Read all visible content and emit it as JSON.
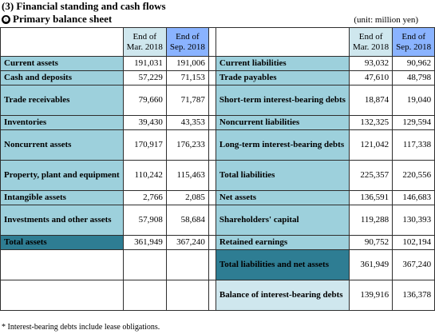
{
  "title": "(3) Financial standing and cash flows",
  "subtitle_badge": "❶",
  "subtitle": "Primary balance sheet",
  "unit": "(unit: million yen)",
  "columns": {
    "mar2018_line1": "End of",
    "mar2018_line2": "Mar. 2018",
    "sep2018_line1": "End of",
    "sep2018_line2": "Sep. 2018"
  },
  "colors": {
    "label_fill": "#9dd0dc",
    "header_mar_fill": "#cfe7ee",
    "header_sep_fill": "#8ab3ff",
    "total_fill": "#2e7d93"
  },
  "assets": [
    {
      "label": "Current assets",
      "mar": "191,031",
      "sep": "191,006",
      "indent": false
    },
    {
      "label": "Cash and deposits",
      "mar": "57,229",
      "sep": "71,153",
      "indent": true
    },
    {
      "label": "Trade receivables",
      "mar": "79,660",
      "sep": "71,787",
      "indent": true
    },
    {
      "label": "Inventories",
      "mar": "39,430",
      "sep": "43,353",
      "indent": true
    },
    {
      "label": "Noncurrent assets",
      "mar": "170,917",
      "sep": "176,233",
      "indent": false
    },
    {
      "label": "Property, plant and equipment",
      "mar": "110,242",
      "sep": "115,463",
      "indent": true
    },
    {
      "label": "Intangible assets",
      "mar": "2,766",
      "sep": "2,085",
      "indent": true
    },
    {
      "label": "Investments and other assets",
      "mar": "57,908",
      "sep": "58,684",
      "indent": true
    },
    {
      "label": "Total assets",
      "mar": "361,949",
      "sep": "367,240",
      "indent": false
    }
  ],
  "liabilities": [
    {
      "label": "Current liabilities",
      "mar": "93,032",
      "sep": "90,962",
      "indent": false
    },
    {
      "label": "Trade payables",
      "mar": "47,610",
      "sep": "48,798",
      "indent": true
    },
    {
      "label": "Short-term interest-bearing debts",
      "mar": "18,874",
      "sep": "19,040",
      "indent": true
    },
    {
      "label": "Noncurrent liabilities",
      "mar": "132,325",
      "sep": "129,594",
      "indent": false
    },
    {
      "label": "Long-term interest-bearing debts",
      "mar": "121,042",
      "sep": "117,338",
      "indent": true
    },
    {
      "label": "Total liabilities",
      "mar": "225,357",
      "sep": "220,556",
      "indent": false
    },
    {
      "label": "Net assets",
      "mar": "136,591",
      "sep": "146,683",
      "indent": false
    },
    {
      "label": "Shareholders' capital",
      "mar": "119,288",
      "sep": "130,393",
      "indent": true
    },
    {
      "label": "Retained earnings",
      "mar": "90,752",
      "sep": "102,194",
      "indent": true
    },
    {
      "label": "Total liabilities and net assets",
      "mar": "361,949",
      "sep": "367,240",
      "indent": false
    },
    {
      "label": "Balance of interest-bearing debts",
      "mar": "139,916",
      "sep": "136,378",
      "indent": false
    }
  ],
  "footnote": "* Interest-bearing debts include lease obligations."
}
